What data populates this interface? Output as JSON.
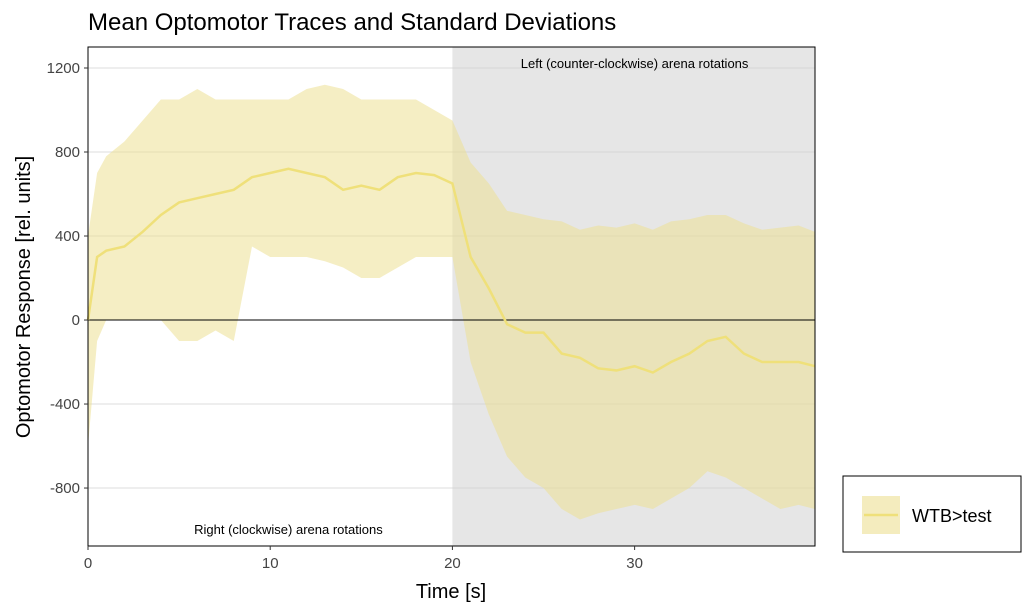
{
  "chart_data": {
    "type": "line",
    "title": "Mean Optomotor Traces and Standard Deviations",
    "xlabel": "Time [s]",
    "ylabel": "Optomotor Response [rel. units]",
    "xlim": [
      0,
      39.9
    ],
    "ylim": [
      -1076,
      1300
    ],
    "xticks": [
      0,
      10,
      20,
      30
    ],
    "yticks": [
      1200,
      800,
      400,
      0,
      -400,
      -800
    ],
    "grid": true,
    "shaded_region": {
      "x": [
        20,
        39.9
      ],
      "color": "#e6e6e6"
    },
    "annotations": [
      {
        "text": "Left (counter-clockwise) arena rotations",
        "x": 30,
        "y": 1220
      },
      {
        "text": "Right (clockwise) arena rotations",
        "x": 11,
        "y": -1000
      }
    ],
    "legend": {
      "placement": "right-bottom",
      "entries": [
        "WTB>test"
      ]
    },
    "series": [
      {
        "name": "WTB>test",
        "color": "#efe07a",
        "band_color": "#ede093",
        "x": [
          0,
          0.5,
          1,
          2,
          3,
          4,
          5,
          6,
          7,
          8,
          9,
          10,
          11,
          12,
          13,
          14,
          15,
          16,
          17,
          18,
          19,
          20,
          21,
          22,
          23,
          24,
          25,
          26,
          27,
          28,
          29,
          30,
          31,
          32,
          33,
          34,
          35,
          36,
          37,
          38,
          39,
          39.9
        ],
        "mean": [
          0,
          300,
          330,
          350,
          420,
          500,
          560,
          580,
          600,
          620,
          680,
          700,
          720,
          700,
          680,
          620,
          640,
          620,
          680,
          700,
          690,
          650,
          300,
          150,
          -20,
          -60,
          -60,
          -160,
          -180,
          -230,
          -240,
          -220,
          -250,
          -200,
          -160,
          -100,
          -80,
          -160,
          -200,
          -200,
          -200,
          -220
        ],
        "upper": [
          400,
          700,
          780,
          850,
          950,
          1050,
          1050,
          1100,
          1050,
          1050,
          1050,
          1050,
          1050,
          1100,
          1120,
          1100,
          1050,
          1050,
          1050,
          1050,
          1000,
          950,
          750,
          650,
          520,
          500,
          480,
          470,
          430,
          450,
          440,
          460,
          430,
          470,
          480,
          500,
          500,
          460,
          430,
          440,
          450,
          420
        ],
        "lower": [
          -600,
          -100,
          0,
          0,
          0,
          0,
          -100,
          -100,
          -50,
          -100,
          350,
          300,
          300,
          300,
          280,
          250,
          200,
          200,
          250,
          300,
          300,
          300,
          -200,
          -450,
          -650,
          -750,
          -800,
          -900,
          -950,
          -920,
          -900,
          -880,
          -900,
          -850,
          -800,
          -720,
          -750,
          -800,
          -850,
          -900,
          -880,
          -900
        ]
      }
    ]
  }
}
